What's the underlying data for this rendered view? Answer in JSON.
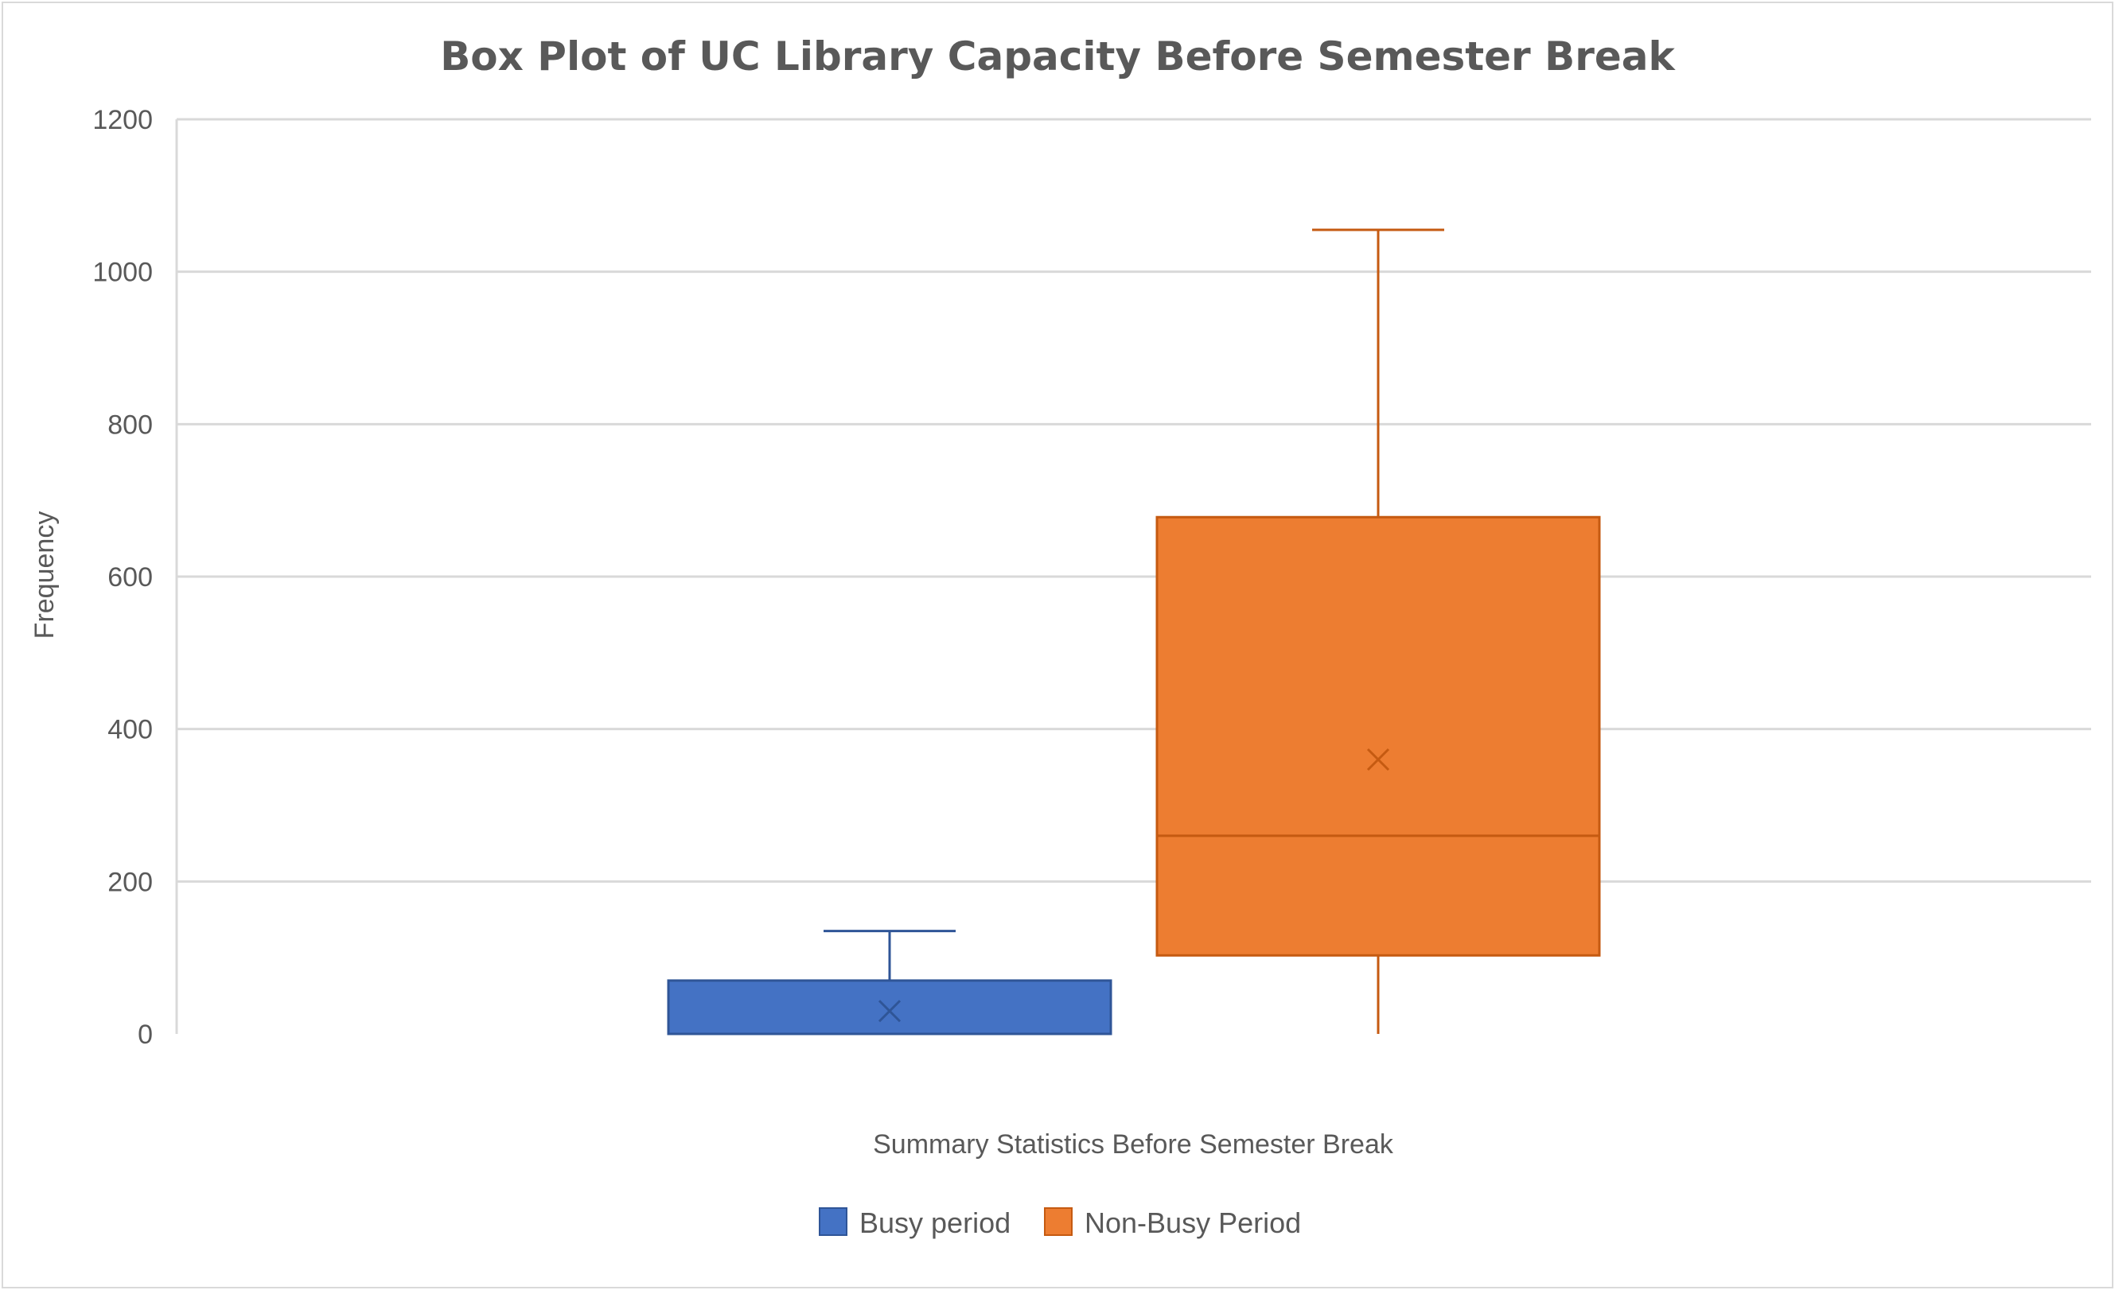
{
  "chart_data": {
    "type": "box",
    "title": "Box Plot of UC Library Capacity Before Semester Break",
    "xlabel": "Summary Statistics Before Semester Break",
    "ylabel": "Frequency",
    "ylim": [
      0,
      1200
    ],
    "yticks": [
      "0",
      "200",
      "400",
      "600",
      "800",
      "1000",
      "1200"
    ],
    "grid": true,
    "legend_position": "bottom",
    "series": [
      {
        "name": "Busy period",
        "color": "#4472C4",
        "min": 0,
        "q1": 0,
        "median": 0,
        "q3": 70,
        "max": 135,
        "mean": 30
      },
      {
        "name": "Non-Busy Period",
        "color": "#ED7D31",
        "min": 0,
        "q1": 103,
        "median": 260,
        "q3": 678,
        "max": 1055,
        "mean": 360
      }
    ]
  }
}
